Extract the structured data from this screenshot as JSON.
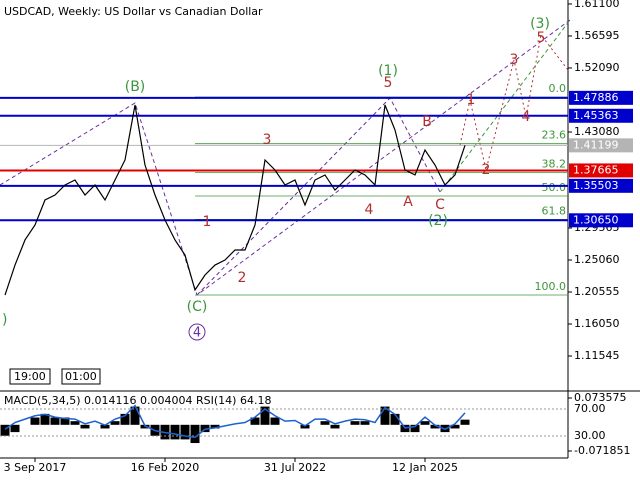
{
  "chart_data": {
    "type": "line",
    "title": "USDCAD, Weekly:  US Dollar vs Canadian Dollar",
    "categories": [
      null,
      null,
      null,
      "3 Sep 2017",
      null,
      null,
      null,
      null,
      null,
      null,
      null,
      null,
      null,
      null,
      null,
      null,
      "16 Feb 2020",
      null,
      null,
      null,
      null,
      null,
      null,
      null,
      null,
      null,
      null,
      null,
      null,
      "31 Jul 2022",
      null,
      null,
      null,
      null,
      null,
      null,
      null,
      null,
      null,
      null,
      null,
      null,
      "12 Jan 2025",
      null,
      null,
      null,
      null
    ],
    "values": [
      1.2013,
      1.2435,
      1.2788,
      1.2999,
      1.3351,
      1.3421,
      1.3562,
      1.3632,
      1.3421,
      1.3562,
      1.3351,
      1.3632,
      1.3914,
      1.4688,
      1.3843,
      1.3421,
      1.3069,
      1.2788,
      1.2576,
      1.2084,
      1.2295,
      1.2435,
      1.2506,
      1.2647,
      1.2647,
      1.2999,
      1.3914,
      1.3773,
      1.3562,
      1.3632,
      1.328,
      1.3632,
      1.3703,
      1.3491,
      1.3632,
      1.3773,
      1.3703,
      1.3562,
      1.4688,
      1.4336,
      1.3773,
      1.3703,
      1.4054,
      1.3843,
      1.3562,
      1.3703,
      1.412
    ],
    "color": "#000000",
    "ylim": [
      1.0676,
      1.6166
    ],
    "yticks": [
      {
        "value": 1.611,
        "label": "1.61100"
      },
      {
        "value": 1.56595,
        "label": "1.56595"
      },
      {
        "value": 1.5209,
        "label": "1.52090"
      },
      {
        "value": 1.4308,
        "label": "1.43080"
      },
      {
        "value": 1.29565,
        "label": "1.29565"
      },
      {
        "value": 1.2506,
        "label": "1.25060"
      },
      {
        "value": 1.20555,
        "label": "1.20555"
      },
      {
        "value": 1.1605,
        "label": "1.16050"
      },
      {
        "value": 1.11545,
        "label": "1.11545"
      }
    ],
    "levels": [
      {
        "value": 1.47886,
        "label": "1.47886",
        "color": "#0000cc"
      },
      {
        "value": 1.45363,
        "label": "1.45363",
        "color": "#0000cc"
      },
      {
        "value": 1.41199,
        "label": "1.41199",
        "color": "#b4b4b4"
      },
      {
        "value": 1.37665,
        "label": "1.37665",
        "color": "#e00000"
      },
      {
        "value": 1.35503,
        "label": "1.35503",
        "color": "#0000cc"
      },
      {
        "value": 1.3065,
        "label": "1.30650",
        "color": "#0000cc"
      }
    ],
    "fib_levels": [
      {
        "value": 1.4801,
        "label": "0.0"
      },
      {
        "value": 1.4143,
        "label": "23.6"
      },
      {
        "value": 1.3736,
        "label": "38.2"
      },
      {
        "value": 1.3407,
        "label": "50.0"
      },
      {
        "value": 1.3078,
        "label": "61.8"
      },
      {
        "value": 1.2013,
        "label": "100.0"
      }
    ],
    "fib_color": "#3c963c",
    "wave_labels": [
      "(B)",
      "(C)",
      "4",
      "(1)",
      "5",
      "(2)",
      "(3)",
      "5",
      "3",
      "1",
      "2",
      "4",
      "A",
      "B",
      "C",
      "1",
      "2",
      "3",
      "4",
      ")"
    ],
    "time_labels": [
      "19:00",
      "01:00"
    ],
    "indicator_label": "MACD(5,34,5) 0.014116 0.004004 RSI(14) 64.18",
    "macd": {
      "color": "#000000",
      "ylim": [
        -0.071851,
        0.073575
      ],
      "yticks": [
        {
          "value": 0.073575,
          "label": "0.073575"
        },
        {
          "value": -0.071851,
          "label": "-0.071851"
        }
      ],
      "values": [
        -0.03,
        -0.02,
        0.0,
        0.02,
        0.03,
        0.02,
        0.02,
        0.01,
        -0.01,
        0.0,
        -0.01,
        0.01,
        0.03,
        0.05,
        -0.01,
        -0.03,
        -0.04,
        -0.04,
        -0.04,
        -0.05,
        -0.02,
        -0.01,
        0.0,
        0.0,
        0.0,
        0.02,
        0.05,
        0.02,
        0.0,
        0.0,
        -0.01,
        0.0,
        0.01,
        -0.01,
        0.0,
        0.01,
        0.01,
        0.0,
        0.05,
        0.03,
        -0.02,
        -0.02,
        0.01,
        -0.01,
        -0.02,
        -0.01,
        0.014116
      ]
    },
    "rsi": {
      "color": "#1e62d0",
      "ylim": [
        0,
        100
      ],
      "yticks": [
        {
          "value": 70,
          "label": "70.00"
        },
        {
          "value": 30,
          "label": "30.00"
        }
      ],
      "values": [
        40,
        50,
        55,
        60,
        62,
        58,
        56,
        55,
        48,
        52,
        46,
        55,
        60,
        75,
        45,
        38,
        35,
        33,
        30,
        28,
        40,
        42,
        45,
        48,
        50,
        58,
        70,
        60,
        52,
        53,
        45,
        55,
        55,
        48,
        52,
        55,
        54,
        50,
        72,
        62,
        42,
        44,
        58,
        46,
        40,
        48,
        64.18
      ]
    }
  }
}
